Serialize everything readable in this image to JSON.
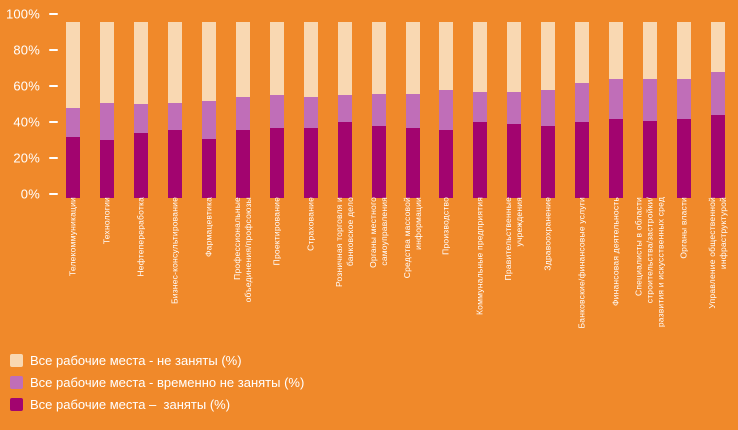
{
  "chart_data": {
    "type": "bar",
    "stacked": true,
    "percent": true,
    "title": "",
    "xlabel": "",
    "ylabel": "",
    "ylim": [
      0,
      100
    ],
    "yticks": [
      0,
      20,
      40,
      60,
      80,
      100
    ],
    "ytick_suffix": "%",
    "grid": false,
    "background_color": "#F0892A",
    "text_color": "#FFFFFF",
    "categories": [
      "Телекоммуникации",
      "Технологии",
      "Нефтепереработка",
      "Бизнес-консультирование",
      "Фармацевтика",
      "Профессиональные\nобъединения/профсоюзы",
      "Проектирование",
      "Страхование",
      "Розничная торговля и\nбанковское дело",
      "Органы местного\nсамоуправления",
      "Средства массовой\nинформации",
      "Производство",
      "Коммунальные предприятия",
      "Правительственные\nучреждения",
      "Здравоохранение",
      "Банковские/финансовые услуги",
      "Финансовая деятельность",
      "Специалисты в области\nстроительства/застройки/\nразвития и искусственных сред",
      "Органы власти",
      "Управление общественной\nинфраструктурой"
    ],
    "series": [
      {
        "key": "occupied",
        "name": "Все рабочие места –  заняты (%)",
        "color": "#A2046F",
        "values": [
          34,
          32,
          36,
          38,
          33,
          38,
          39,
          39,
          42,
          40,
          39,
          38,
          42,
          41,
          40,
          42,
          44,
          43,
          44,
          46
        ]
      },
      {
        "key": "temporarily-vacant",
        "name": "Все рабочие места - временно не заняты (%)",
        "color": "#C06EB8",
        "values": [
          16,
          21,
          16,
          15,
          21,
          18,
          18,
          17,
          15,
          18,
          19,
          22,
          17,
          18,
          20,
          22,
          22,
          23,
          22,
          24
        ]
      },
      {
        "key": "vacant",
        "name": "Все рабочие места - не заняты (%)",
        "color": "#F9D8B2",
        "values": [
          48,
          45,
          46,
          45,
          44,
          42,
          41,
          42,
          41,
          40,
          40,
          38,
          39,
          39,
          38,
          34,
          32,
          32,
          32,
          28
        ]
      }
    ],
    "legend": {
      "position": "bottom-left",
      "items": [
        {
          "label": "Все рабочие места - не заняты (%)",
          "color": "#F9D8B2"
        },
        {
          "label": "Все рабочие места - временно не заняты (%)",
          "color": "#C06EB8"
        },
        {
          "label": "Все рабочие места –  заняты (%)",
          "color": "#A2046F"
        }
      ]
    }
  }
}
